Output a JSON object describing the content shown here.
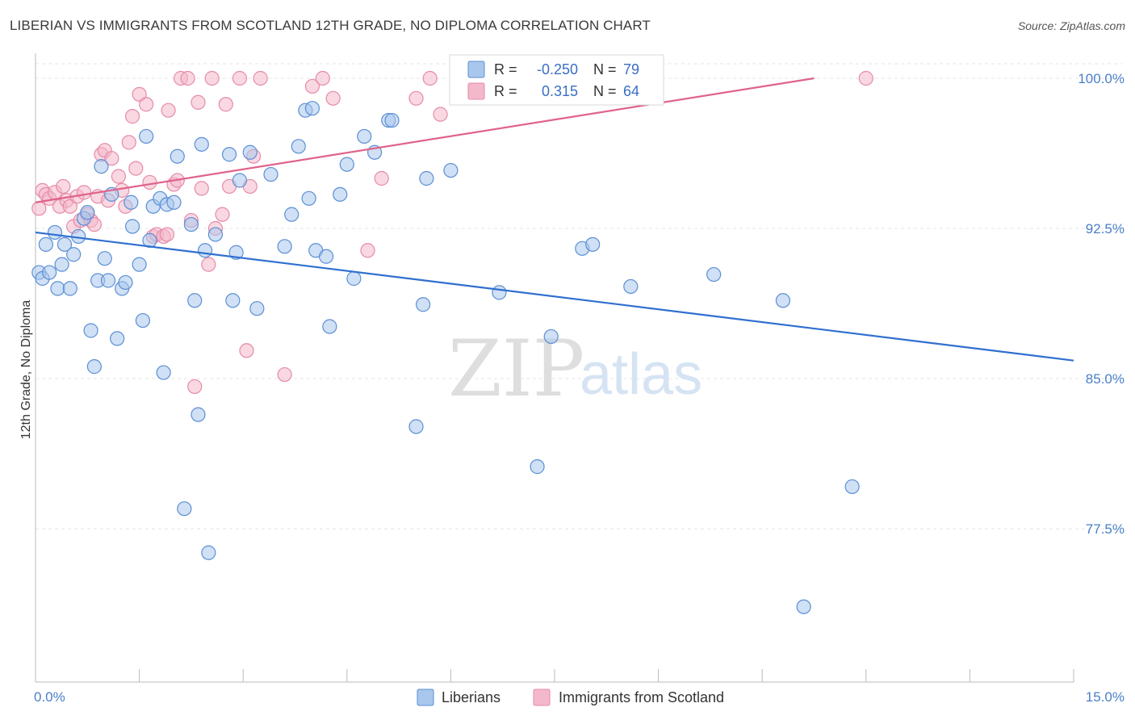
{
  "title": "LIBERIAN VS IMMIGRANTS FROM SCOTLAND 12TH GRADE, NO DIPLOMA CORRELATION CHART",
  "source": "Source: ZipAtlas.com",
  "watermark": {
    "zip": "ZIP",
    "atlas": "atlas"
  },
  "colors": {
    "blue_fill": "#a9c7ec",
    "blue_stroke": "#5b8fd4",
    "blue_line": "#2f6fcf",
    "pink_fill": "#f4b8cb",
    "pink_stroke": "#e68aa8",
    "pink_line": "#e0638c",
    "tick_text": "#4a7fc8",
    "grid": "#e6e6e6"
  },
  "legend": {
    "rows": [
      {
        "r_label": "R =",
        "r_value": "-0.250",
        "n_label": "N =",
        "n_value": "79"
      },
      {
        "r_label": "R =",
        "r_value": "0.315",
        "n_label": "N =",
        "n_value": "64"
      }
    ]
  },
  "chart_data": {
    "type": "scatter",
    "title": "LIBERIAN VS IMMIGRANTS FROM SCOTLAND 12TH GRADE, NO DIPLOMA CORRELATION CHART",
    "xlabel": "",
    "ylabel": "12th Grade, No Diploma",
    "xlim": [
      0,
      15
    ],
    "ylim": [
      72,
      100.5
    ],
    "x_tick_labels": [
      "0.0%",
      "15.0%"
    ],
    "y_ticks": [
      77.5,
      85.0,
      92.5,
      100.0
    ],
    "y_tick_labels": [
      "77.5%",
      "85.0%",
      "92.5%",
      "100.0%"
    ],
    "grid": true,
    "legend_position": "bottom",
    "series": [
      {
        "name": "Liberians",
        "r": -0.25,
        "n": 79,
        "trend": {
          "x": [
            0.0,
            15.0
          ],
          "y": [
            92.3,
            85.9
          ]
        },
        "points": [
          [
            0.05,
            90.3
          ],
          [
            0.1,
            90.0
          ],
          [
            0.15,
            91.7
          ],
          [
            0.2,
            90.3
          ],
          [
            0.28,
            92.3
          ],
          [
            0.32,
            89.5
          ],
          [
            0.38,
            90.7
          ],
          [
            0.42,
            91.7
          ],
          [
            0.5,
            89.5
          ],
          [
            0.55,
            91.2
          ],
          [
            0.62,
            92.1
          ],
          [
            0.7,
            93.0
          ],
          [
            0.75,
            93.3
          ],
          [
            0.8,
            87.4
          ],
          [
            0.85,
            85.6
          ],
          [
            0.9,
            89.9
          ],
          [
            0.95,
            95.6
          ],
          [
            1.0,
            91.0
          ],
          [
            1.05,
            89.9
          ],
          [
            1.1,
            94.2
          ],
          [
            1.18,
            87.0
          ],
          [
            1.25,
            89.5
          ],
          [
            1.3,
            89.8
          ],
          [
            1.38,
            93.8
          ],
          [
            1.4,
            92.6
          ],
          [
            1.5,
            90.7
          ],
          [
            1.55,
            87.9
          ],
          [
            1.6,
            97.1
          ],
          [
            1.65,
            91.9
          ],
          [
            1.7,
            93.6
          ],
          [
            1.8,
            94.0
          ],
          [
            1.85,
            85.3
          ],
          [
            1.9,
            93.7
          ],
          [
            2.0,
            93.8
          ],
          [
            2.05,
            96.1
          ],
          [
            2.15,
            78.5
          ],
          [
            2.25,
            92.7
          ],
          [
            2.3,
            88.9
          ],
          [
            2.35,
            83.2
          ],
          [
            2.4,
            96.7
          ],
          [
            2.45,
            91.4
          ],
          [
            2.5,
            76.3
          ],
          [
            2.6,
            92.2
          ],
          [
            2.8,
            96.2
          ],
          [
            2.85,
            88.9
          ],
          [
            2.9,
            91.3
          ],
          [
            2.95,
            94.9
          ],
          [
            3.1,
            96.3
          ],
          [
            3.2,
            88.5
          ],
          [
            3.4,
            95.2
          ],
          [
            3.6,
            91.6
          ],
          [
            3.7,
            93.2
          ],
          [
            3.8,
            96.6
          ],
          [
            3.9,
            98.4
          ],
          [
            3.95,
            94.0
          ],
          [
            4.0,
            98.5
          ],
          [
            4.05,
            91.4
          ],
          [
            4.2,
            91.1
          ],
          [
            4.25,
            87.6
          ],
          [
            4.4,
            94.2
          ],
          [
            4.5,
            95.7
          ],
          [
            4.6,
            90.0
          ],
          [
            4.75,
            97.1
          ],
          [
            4.9,
            96.3
          ],
          [
            5.1,
            97.9
          ],
          [
            5.15,
            97.9
          ],
          [
            5.5,
            82.6
          ],
          [
            5.6,
            88.7
          ],
          [
            5.65,
            95.0
          ],
          [
            6.0,
            95.4
          ],
          [
            6.7,
            89.3
          ],
          [
            7.25,
            80.6
          ],
          [
            7.45,
            87.1
          ],
          [
            7.9,
            91.5
          ],
          [
            8.05,
            91.7
          ],
          [
            8.6,
            89.6
          ],
          [
            9.8,
            90.2
          ],
          [
            10.8,
            88.9
          ],
          [
            11.8,
            79.6
          ],
          [
            11.1,
            73.6
          ]
        ]
      },
      {
        "name": "Immigrants from Scotland",
        "r": 0.315,
        "n": 64,
        "trend": {
          "x": [
            0.0,
            11.25
          ],
          "y": [
            93.8,
            100.0
          ]
        },
        "points": [
          [
            0.05,
            93.5
          ],
          [
            0.1,
            94.4
          ],
          [
            0.15,
            94.2
          ],
          [
            0.2,
            94.0
          ],
          [
            0.28,
            94.3
          ],
          [
            0.35,
            93.6
          ],
          [
            0.4,
            94.6
          ],
          [
            0.45,
            93.9
          ],
          [
            0.5,
            93.6
          ],
          [
            0.55,
            92.6
          ],
          [
            0.6,
            94.1
          ],
          [
            0.65,
            92.9
          ],
          [
            0.7,
            94.3
          ],
          [
            0.75,
            93.2
          ],
          [
            0.8,
            92.9
          ],
          [
            0.85,
            92.7
          ],
          [
            0.9,
            94.1
          ],
          [
            0.95,
            96.2
          ],
          [
            1.0,
            96.4
          ],
          [
            1.05,
            93.9
          ],
          [
            1.1,
            96.0
          ],
          [
            1.2,
            95.1
          ],
          [
            1.25,
            94.4
          ],
          [
            1.3,
            93.6
          ],
          [
            1.35,
            96.8
          ],
          [
            1.4,
            98.1
          ],
          [
            1.45,
            95.5
          ],
          [
            1.5,
            99.2
          ],
          [
            1.6,
            98.7
          ],
          [
            1.65,
            94.8
          ],
          [
            1.7,
            92.1
          ],
          [
            1.75,
            92.2
          ],
          [
            1.85,
            92.1
          ],
          [
            1.9,
            92.2
          ],
          [
            1.92,
            98.4
          ],
          [
            2.0,
            94.7
          ],
          [
            2.05,
            94.9
          ],
          [
            2.1,
            100.0
          ],
          [
            2.2,
            100.0
          ],
          [
            2.25,
            92.9
          ],
          [
            2.3,
            84.6
          ],
          [
            2.35,
            98.8
          ],
          [
            2.4,
            94.5
          ],
          [
            2.5,
            90.7
          ],
          [
            2.55,
            100.0
          ],
          [
            2.6,
            92.5
          ],
          [
            2.7,
            93.2
          ],
          [
            2.75,
            98.7
          ],
          [
            2.8,
            94.6
          ],
          [
            2.95,
            100.0
          ],
          [
            3.05,
            86.4
          ],
          [
            3.1,
            94.6
          ],
          [
            3.15,
            96.1
          ],
          [
            3.25,
            100.0
          ],
          [
            3.6,
            85.2
          ],
          [
            4.0,
            99.6
          ],
          [
            4.15,
            100.0
          ],
          [
            4.3,
            99.0
          ],
          [
            4.8,
            91.4
          ],
          [
            5.0,
            95.0
          ],
          [
            5.5,
            99.0
          ],
          [
            5.7,
            100.0
          ],
          [
            5.85,
            98.2
          ],
          [
            12.0,
            100.0
          ]
        ]
      }
    ]
  }
}
